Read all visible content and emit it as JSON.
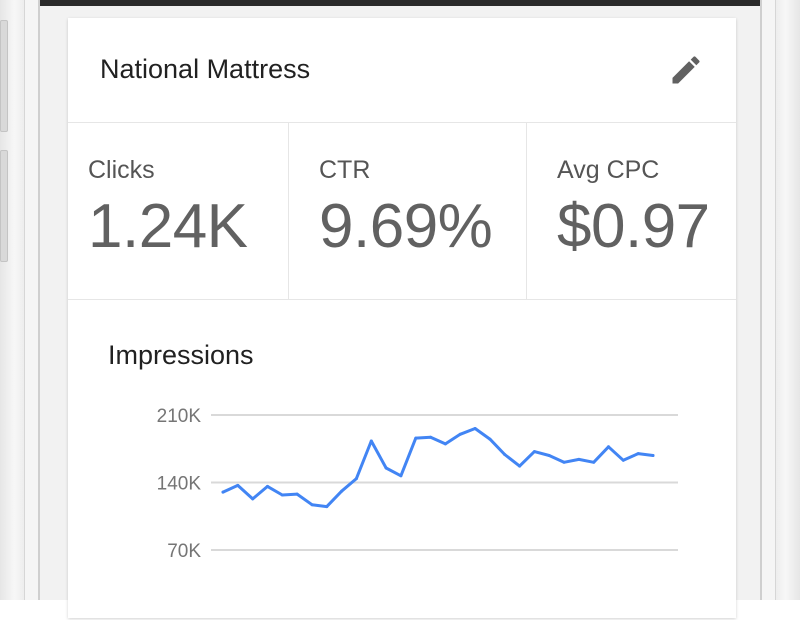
{
  "card": {
    "title": "National Mattress",
    "edit_icon": "pencil-icon"
  },
  "metrics": [
    {
      "label": "Clicks",
      "value": "1.24K"
    },
    {
      "label": "CTR",
      "value": "9.69%"
    },
    {
      "label": "Avg CPC",
      "value": "$0.97"
    }
  ],
  "chart": {
    "title": "Impressions"
  },
  "chart_data": {
    "type": "line",
    "title": "Impressions",
    "xlabel": "",
    "ylabel": "",
    "y_ticks": [
      {
        "value": 210000,
        "label": "210K"
      },
      {
        "value": 140000,
        "label": "140K"
      },
      {
        "value": 70000,
        "label": "70K"
      }
    ],
    "ylim": [
      70000,
      210000
    ],
    "grid": true,
    "series": [
      {
        "color": "#4285f4",
        "values": [
          130000,
          137000,
          123000,
          136000,
          127000,
          128000,
          117000,
          115000,
          131000,
          144000,
          183000,
          155000,
          147000,
          186000,
          187000,
          180000,
          190000,
          196000,
          185000,
          169000,
          157000,
          172000,
          168000,
          161000,
          164000,
          161000,
          177000,
          163000,
          170000,
          168000
        ]
      }
    ]
  },
  "colors": {
    "accent": "#4285f4",
    "text_primary": "#212121",
    "text_secondary": "#616161",
    "divider": "#e6e6e6"
  }
}
